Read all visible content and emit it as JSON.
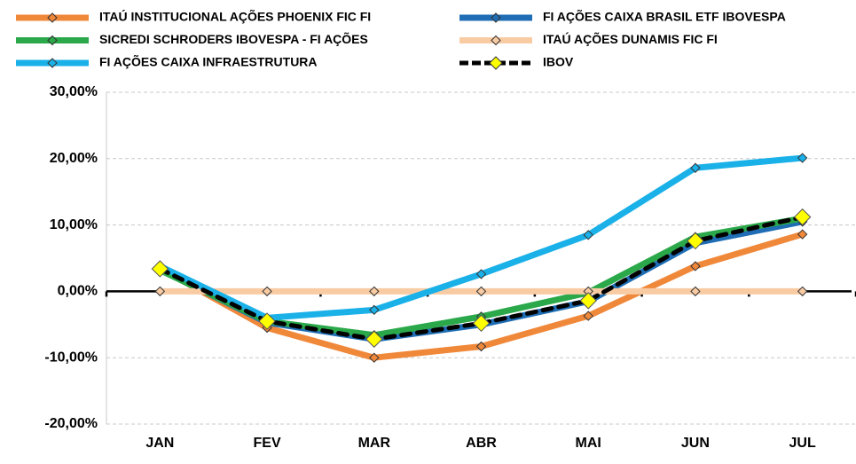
{
  "chart_data": {
    "type": "line",
    "categories": [
      "JAN",
      "FEV",
      "MAR",
      "ABR",
      "MAI",
      "JUN",
      "JUL"
    ],
    "ylim": [
      -20,
      30
    ],
    "yticks": [
      {
        "value": -20,
        "label": "-20,00%"
      },
      {
        "value": -10,
        "label": "-10,00%"
      },
      {
        "value": 0,
        "label": "0,00%"
      },
      {
        "value": 10,
        "label": "10,00%"
      },
      {
        "value": 20,
        "label": "20,00%"
      },
      {
        "value": 30,
        "label": "30,00%"
      }
    ],
    "grid": true,
    "series": [
      {
        "name": "ITAÚ INSTITUCIONAL AÇÕES PHOENIX FIC FI",
        "color": "#f0883a",
        "values": [
          3.5,
          -5.5,
          -10.0,
          -8.3,
          -3.7,
          3.8,
          8.6
        ]
      },
      {
        "name": "FI AÇÕES CAIXA BRASIL ETF IBOVESPA",
        "color": "#1f6eb5",
        "values": [
          3.3,
          -4.7,
          -7.2,
          -5.0,
          -1.5,
          7.3,
          10.5
        ]
      },
      {
        "name": "SICREDI SCHRODERS IBOVESPA - FI AÇÕES",
        "color": "#2aa84a",
        "values": [
          3.2,
          -4.5,
          -6.6,
          -3.8,
          -0.2,
          8.2,
          11.0
        ]
      },
      {
        "name": "ITAÚ AÇÕES DUNAMIS FIC FI",
        "color": "#f8cba3",
        "values": [
          0,
          0,
          0,
          0,
          0,
          0,
          0
        ]
      },
      {
        "name": "FI AÇÕES CAIXA INFRAESTRUTURA",
        "color": "#1ab0e8",
        "values": [
          3.8,
          -4.0,
          -2.8,
          2.6,
          8.5,
          18.6,
          20.1
        ]
      },
      {
        "name": "IBOV",
        "color": "#000000",
        "marker_color": "#ffff00",
        "dashed": true,
        "values": [
          3.4,
          -4.5,
          -7.2,
          -4.8,
          -1.4,
          7.6,
          11.2
        ]
      }
    ]
  }
}
